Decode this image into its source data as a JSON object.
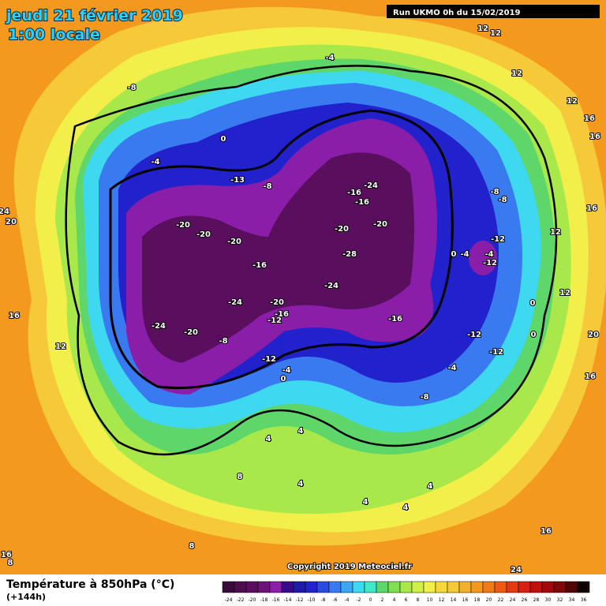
{
  "header": {
    "date": "jeudi 21 février 2019",
    "time": "1:00 locale",
    "run": "Run UKMO 0h du 15/02/2019"
  },
  "map": {
    "copyright": "Copyright 2019 Meteociel.fr",
    "labels": [
      12,
      12,
      -4,
      12,
      -8,
      16,
      12,
      16,
      0,
      -4,
      -13,
      -8,
      -24,
      -16,
      -16,
      -8,
      -8,
      24,
      20,
      16,
      -20,
      -20,
      -20,
      -20,
      12,
      -20,
      -12,
      0,
      -4,
      -4,
      -12,
      -28,
      -16,
      -24,
      -24,
      -20,
      0,
      12,
      16,
      -16,
      -12,
      -16,
      -24,
      -20,
      -8,
      -12,
      0,
      20,
      12,
      -12,
      -12,
      -4,
      0,
      -4,
      16,
      -8,
      4,
      4,
      8,
      4,
      4,
      4,
      4,
      16,
      8,
      24,
      16,
      8
    ]
  },
  "footer": {
    "variable": "Température à 850hPa (°C)",
    "lead": "(+144h)"
  },
  "legend": {
    "ticks": [
      -24,
      -22,
      -20,
      -18,
      -16,
      -14,
      -12,
      -10,
      -8,
      -6,
      -4,
      -2,
      0,
      2,
      4,
      6,
      8,
      10,
      12,
      14,
      16,
      18,
      20,
      22,
      24,
      26,
      28,
      30,
      32,
      34,
      36
    ],
    "colors": [
      "#3a0a3a",
      "#4c0e4e",
      "#5a0f5e",
      "#6e1478",
      "#8a1ea8",
      "#3a0a8a",
      "#1c1ca8",
      "#2222cc",
      "#2a4ae0",
      "#3a7af0",
      "#3aa8f5",
      "#3ed8f0",
      "#3ee8c8",
      "#5fd66a",
      "#7ee050",
      "#a8e84a",
      "#d0f048",
      "#f2ef4a",
      "#f6d83a",
      "#f6c93a",
      "#f3b02a",
      "#f39a1e",
      "#f07a18",
      "#ec5a14",
      "#e43a12",
      "#d82010",
      "#c0100c",
      "#a00a0a",
      "#800808",
      "#500404",
      "#100000"
    ]
  }
}
